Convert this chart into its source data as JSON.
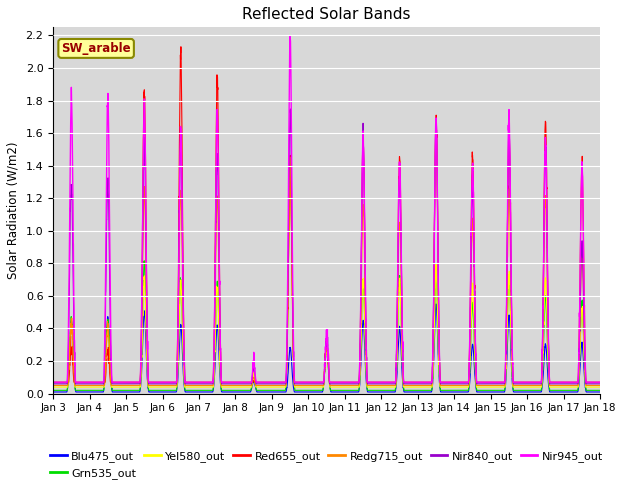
{
  "title": "Reflected Solar Bands",
  "ylabel": "Solar Radiation (W/m2)",
  "annotation": "SW_arable",
  "ylim": [
    0,
    2.25
  ],
  "yticks": [
    0.0,
    0.2,
    0.4,
    0.6,
    0.8,
    1.0,
    1.2,
    1.4,
    1.6,
    1.8,
    2.0,
    2.2
  ],
  "xtick_labels": [
    "Jan 3",
    "Jan 4",
    "Jan 5",
    "Jan 6",
    "Jan 7",
    "Jan 8",
    "Jan 9",
    "Jan 10",
    "Jan 11",
    "Jan 12",
    "Jan 13",
    "Jan 14",
    "Jan 15",
    "Jan 16",
    "Jan 17",
    "Jan 18"
  ],
  "series_order": [
    "Blu475_out",
    "Grn535_out",
    "Yel580_out",
    "Red655_out",
    "Redg715_out",
    "Nir840_out",
    "Nir945_out"
  ],
  "series": {
    "Blu475_out": {
      "color": "#0000ff",
      "lw": 0.8
    },
    "Grn535_out": {
      "color": "#00dd00",
      "lw": 0.8
    },
    "Yel580_out": {
      "color": "#ffff00",
      "lw": 0.8
    },
    "Red655_out": {
      "color": "#ff0000",
      "lw": 0.8
    },
    "Redg715_out": {
      "color": "#ff8800",
      "lw": 0.8
    },
    "Nir840_out": {
      "color": "#9900cc",
      "lw": 0.8
    },
    "Nir945_out": {
      "color": "#ff00ff",
      "lw": 1.0
    }
  },
  "bg_color": "#d8d8d8",
  "fig_color": "#ffffff",
  "annotation_bg": "#ffff99",
  "annotation_fg": "#990000",
  "annotation_border": "#888800",
  "grid_color": "#ffffff",
  "n_days": 15,
  "pts_per_day": 288,
  "day_peaks": {
    "Nir945_out": [
      1.8,
      1.8,
      1.75,
      1.62,
      1.72,
      0.17,
      2.17,
      0.33,
      1.55,
      1.4,
      1.68,
      1.4,
      1.68,
      1.55,
      1.38
    ],
    "Nir840_out": [
      1.28,
      1.28,
      1.5,
      1.55,
      1.45,
      0.15,
      1.72,
      0.3,
      1.55,
      1.32,
      1.68,
      1.25,
      1.6,
      1.5,
      0.9
    ],
    "Redg715_out": [
      0.42,
      0.4,
      1.25,
      1.22,
      1.2,
      0.1,
      1.42,
      0.28,
      1.15,
      1.05,
      1.62,
      1.05,
      1.22,
      1.2,
      0.88
    ],
    "Red655_out": [
      0.25,
      0.25,
      1.82,
      2.07,
      1.92,
      0.08,
      1.43,
      0.3,
      1.54,
      1.44,
      1.67,
      1.44,
      1.6,
      1.65,
      1.38
    ],
    "Yel580_out": [
      0.4,
      0.38,
      0.7,
      0.68,
      0.65,
      0.09,
      1.35,
      0.26,
      0.68,
      0.68,
      0.72,
      0.62,
      0.7,
      0.7,
      0.52
    ],
    "Grn535_out": [
      0.44,
      0.45,
      0.8,
      0.7,
      0.68,
      0.09,
      1.4,
      0.27,
      0.68,
      0.72,
      0.72,
      0.55,
      0.72,
      0.6,
      0.55
    ],
    "Blu475_out": [
      0.45,
      0.47,
      0.5,
      0.42,
      0.42,
      0.07,
      0.28,
      0.28,
      0.45,
      0.4,
      0.55,
      0.3,
      0.48,
      0.3,
      0.3
    ]
  },
  "baselines": {
    "Nir945_out": 0.07,
    "Nir840_out": 0.06,
    "Redg715_out": 0.05,
    "Red655_out": 0.07,
    "Yel580_out": 0.04,
    "Grn535_out": 0.02,
    "Blu475_out": 0.01
  }
}
